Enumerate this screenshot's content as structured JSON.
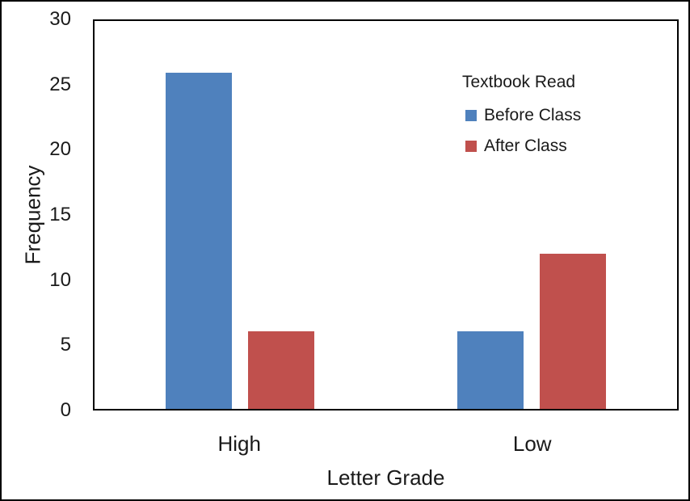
{
  "chart_data": {
    "type": "bar",
    "title": "",
    "categories": [
      "High",
      "Low"
    ],
    "series": [
      {
        "name": "Before Class",
        "color": "#4F81BD",
        "values": [
          26,
          6
        ]
      },
      {
        "name": "After Class",
        "color": "#C0504D",
        "values": [
          6,
          12
        ]
      }
    ],
    "xlabel": "Letter Grade",
    "ylabel": "Frequency",
    "ylim": [
      0,
      30
    ],
    "yticks": [
      0,
      5,
      10,
      15,
      20,
      25,
      30
    ],
    "legend": {
      "title": "Textbook Read",
      "position": "inside-top-right"
    },
    "grid": false,
    "colors": {
      "axis": "#000000",
      "text": "#1a1a1a",
      "background": "#ffffff"
    }
  }
}
